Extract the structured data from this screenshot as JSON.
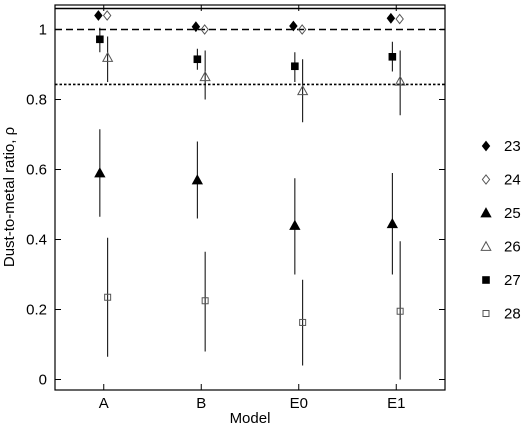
{
  "chart_data": {
    "type": "scatter",
    "xlabel": "Model",
    "ylabel": "Dust-to-metal ratio, ρ",
    "categories": [
      "A",
      "B",
      "E0",
      "E1"
    ],
    "ylim": [
      -0.03,
      1.07
    ],
    "yticks": [
      0,
      0.2,
      0.4,
      0.6,
      0.8,
      1
    ],
    "yticklabels": [
      "0",
      "0.2",
      "0.4",
      "0.6",
      "0.8",
      "1"
    ],
    "grid": false,
    "legend_position": "right",
    "reference_lines": [
      {
        "y": 1.06,
        "style": "solid"
      },
      {
        "y": 1.0,
        "style": "dashed"
      },
      {
        "y": 0.843,
        "style": "dotted"
      }
    ],
    "series": [
      {
        "name": "23",
        "marker": "diamond-filled",
        "offset": -0.055,
        "values": [
          1.04,
          1.008,
          1.01,
          1.032
        ],
        "err_low": [
          1.04,
          1.008,
          1.01,
          1.032
        ],
        "err_high": [
          1.04,
          1.008,
          1.01,
          1.032
        ]
      },
      {
        "name": "24",
        "marker": "diamond-open",
        "offset": 0.035,
        "values": [
          1.04,
          1.0,
          1.0,
          1.03
        ],
        "err_low": [
          1.04,
          1.0,
          1.0,
          1.03
        ],
        "err_high": [
          1.04,
          1.0,
          1.0,
          1.03
        ]
      },
      {
        "name": "25",
        "marker": "triangle-filled",
        "offset": -0.04,
        "values": [
          0.59,
          0.57,
          0.44,
          0.445
        ],
        "err_low": [
          0.465,
          0.46,
          0.3,
          0.3
        ],
        "err_high": [
          0.715,
          0.68,
          0.575,
          0.59
        ]
      },
      {
        "name": "26",
        "marker": "triangle-open",
        "offset": 0.04,
        "values": [
          0.92,
          0.865,
          0.825,
          0.852
        ],
        "err_low": [
          0.85,
          0.8,
          0.735,
          0.755
        ],
        "err_high": [
          0.98,
          0.94,
          0.915,
          0.94
        ]
      },
      {
        "name": "27",
        "marker": "square-filled",
        "offset": -0.04,
        "values": [
          0.972,
          0.915,
          0.895,
          0.922
        ],
        "err_low": [
          0.935,
          0.885,
          0.85,
          0.88
        ],
        "err_high": [
          1.005,
          0.945,
          0.935,
          0.965
        ]
      },
      {
        "name": "28",
        "marker": "square-open",
        "offset": 0.04,
        "values": [
          0.235,
          0.225,
          0.163,
          0.195
        ],
        "err_low": [
          0.065,
          0.08,
          0.04,
          0.0
        ],
        "err_high": [
          0.405,
          0.365,
          0.285,
          0.395
        ]
      }
    ]
  }
}
